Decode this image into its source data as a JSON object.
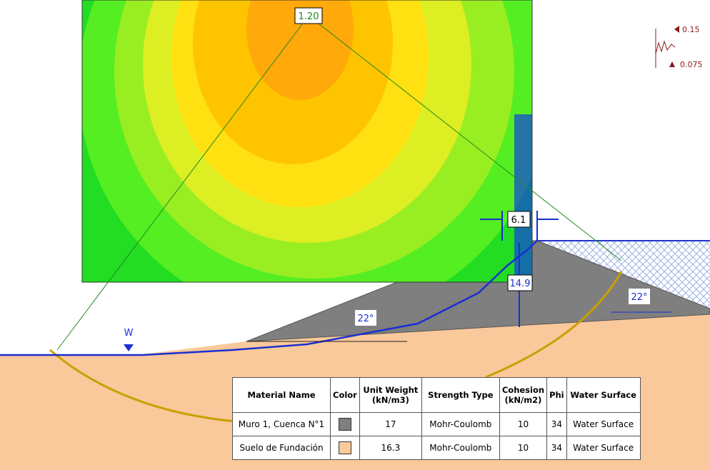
{
  "annotations": {
    "factor_of_safety": "1.20",
    "crest_width": "6.1",
    "dam_height": "14.9",
    "slope_left": "22°",
    "slope_right": "22°",
    "water_marker": "W",
    "legend_high": "0.15",
    "legend_low": "0.075"
  },
  "table": {
    "headers": [
      "Material Name",
      "Color",
      "Unit Weight (kN/m3)",
      "Strength Type",
      "Cohesion (kN/m2)",
      "Phi",
      "Water Surface"
    ],
    "rows": [
      [
        "Muro 1, Cuenca N°1",
        "",
        "17",
        "Mohr-Coulomb",
        "10",
        "34",
        "Water Surface"
      ],
      [
        "Suelo de Fundación",
        "",
        "16.3",
        "Mohr-Coulomb",
        "10",
        "34",
        "Water Surface"
      ]
    ]
  }
}
